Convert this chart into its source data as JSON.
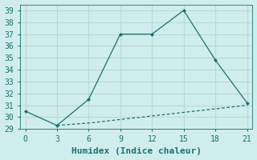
{
  "line1_x": [
    0,
    3,
    6,
    9,
    12,
    15,
    18,
    21
  ],
  "line1_y": [
    30.5,
    29.3,
    31.5,
    37.0,
    37.0,
    39.0,
    34.8,
    31.2
  ],
  "line2_x": [
    3,
    6,
    9,
    12,
    15,
    18,
    21
  ],
  "line2_y": [
    29.3,
    29.5,
    29.8,
    30.1,
    30.4,
    30.7,
    31.0
  ],
  "line_color": "#1a7070",
  "bg_color": "#d0eded",
  "grid_color": "#b8d8d8",
  "xlabel": "Humidex (Indice chaleur)",
  "xlim": [
    -0.5,
    21.5
  ],
  "ylim": [
    29,
    39.5
  ],
  "xticks": [
    0,
    3,
    6,
    9,
    12,
    15,
    18,
    21
  ],
  "yticks": [
    29,
    30,
    31,
    32,
    33,
    34,
    35,
    36,
    37,
    38,
    39
  ],
  "xlabel_fontsize": 8,
  "tick_fontsize": 7,
  "font_family": "monospace"
}
